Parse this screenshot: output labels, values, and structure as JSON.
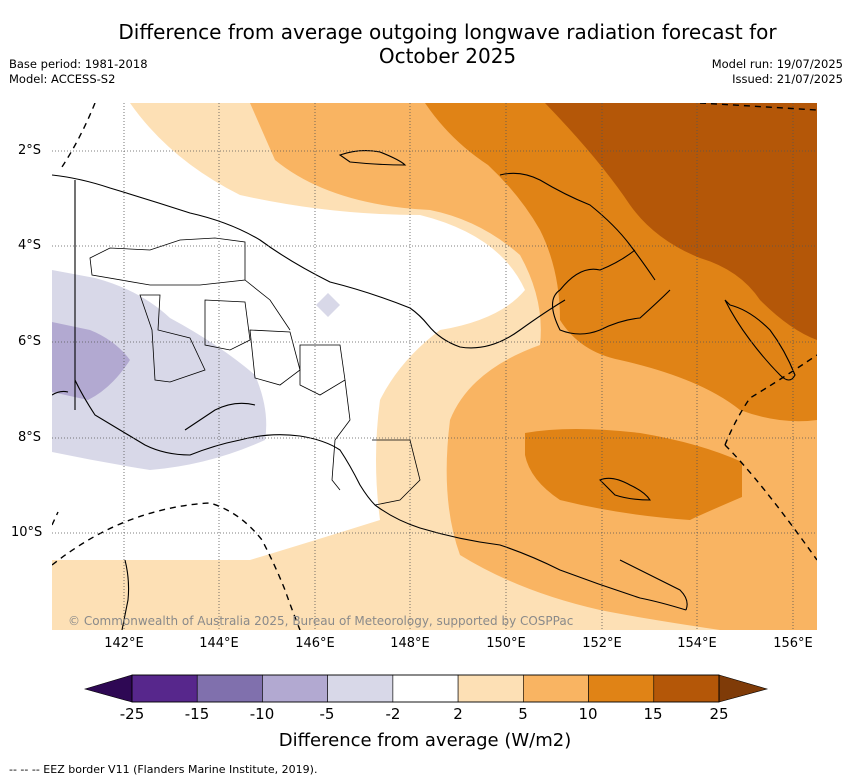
{
  "title_line1": "Difference from average outgoing longwave radiation forecast for",
  "title_line2": "October 2025",
  "meta_left": [
    "Base period: 1981-2018",
    "Model: ACCESS-S2"
  ],
  "meta_right": [
    "Model run: 19/07/2025",
    "Issued: 21/07/2025"
  ],
  "lat_labels": [
    "2°S",
    "4°S",
    "6°S",
    "8°S",
    "10°S"
  ],
  "lon_labels": [
    "142°E",
    "144°E",
    "146°E",
    "148°E",
    "150°E",
    "152°E",
    "154°E",
    "156°E"
  ],
  "copyright": "© Commonwealth of Australia 2025, Bureau of Meteorology, supported by COSPPac",
  "colorbar": {
    "labels": [
      "-25",
      "-15",
      "-10",
      "-5",
      "-2",
      "2",
      "5",
      "10",
      "15",
      "25"
    ],
    "colors": [
      "#57278c",
      "#8070ad",
      "#b2a9d1",
      "#d8d8e8",
      "#ffffff",
      "#fde0b5",
      "#f9b462",
      "#e08316",
      "#b45708"
    ],
    "under_color": "#2e0854",
    "over_color": "#7f3b08",
    "title": "Difference from average (W/m2)"
  },
  "legend_note": "--  --  -- EEZ border V11 (Flanders Marine Institute, 2019)."
}
